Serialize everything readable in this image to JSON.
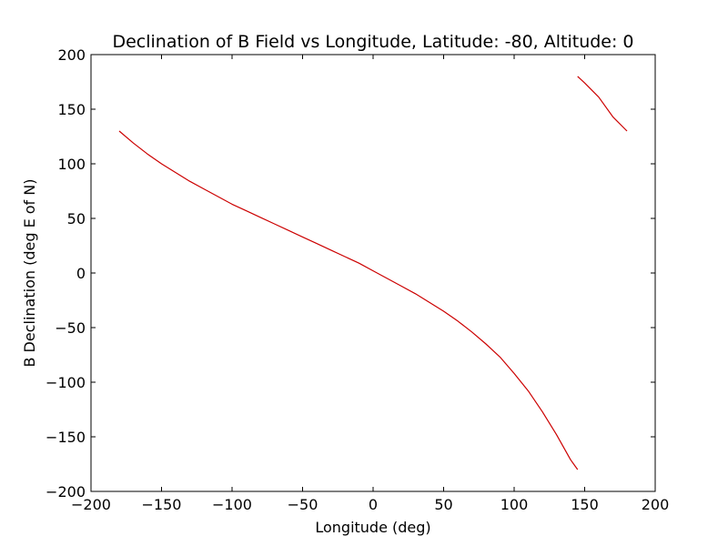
{
  "chart_data": {
    "type": "line",
    "title": "Declination of B Field vs Longitude, Latitude: -80, Altitude: 0",
    "xlabel": "Longitude (deg)",
    "ylabel": "B Declination (deg E of N)",
    "xlim": [
      -200,
      200
    ],
    "ylim": [
      -200,
      200
    ],
    "xticks": [
      -200,
      -150,
      -100,
      -50,
      0,
      50,
      100,
      150,
      200
    ],
    "yticks": [
      -200,
      -150,
      -100,
      -50,
      0,
      50,
      100,
      150,
      200
    ],
    "xtick_labels": [
      "−200",
      "−150",
      "−100",
      "−50",
      "0",
      "50",
      "100",
      "150",
      "200"
    ],
    "ytick_labels": [
      "−200",
      "−150",
      "−100",
      "−50",
      "0",
      "50",
      "100",
      "150",
      "200"
    ],
    "grid": false,
    "line_color": "#cc0000",
    "series": [
      {
        "segments": [
          {
            "x": [
              -180,
              -170,
              -160,
              -150,
              -140,
              -130,
              -120,
              -110,
              -100,
              -90,
              -80,
              -70,
              -60,
              -50,
              -40,
              -30,
              -20,
              -10,
              0,
              10,
              20,
              30,
              40,
              50,
              60,
              70,
              80,
              90,
              100,
              110,
              120,
              130,
              140,
              145
            ],
            "y": [
              130,
              119,
              109,
              100,
              92,
              84,
              77,
              70,
              63,
              57,
              51,
              45,
              39,
              33,
              27,
              21,
              15,
              9,
              2,
              -5,
              -12,
              -19,
              -27,
              -35,
              -44,
              -54,
              -65,
              -77,
              -92,
              -108,
              -127,
              -148,
              -171,
              -180
            ]
          },
          {
            "x": [
              145,
              150,
              160,
              170,
              180
            ],
            "y": [
              180,
              174,
              161,
              143,
              130
            ]
          }
        ]
      }
    ]
  }
}
